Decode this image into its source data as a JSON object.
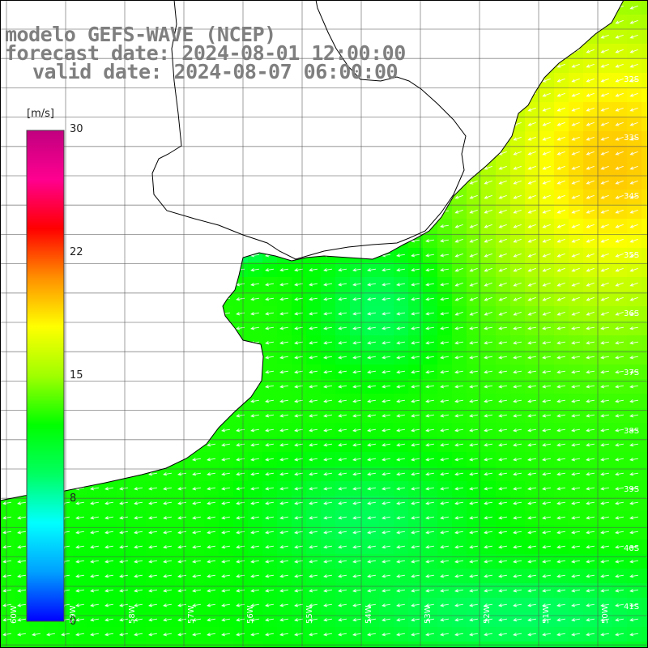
{
  "header": {
    "line1": "modelo GEFS-WAVE (NCEP)",
    "line2": "forecast date: 2024-08-01 12:00:00",
    "line3": "valid date: 2024-08-07 06:00:00"
  },
  "colorbar": {
    "unit": "[m/s]",
    "min": 0,
    "max": 30,
    "ticks": [
      "30",
      "22",
      "15",
      "8",
      "0"
    ],
    "tick_values": [
      30,
      22,
      15,
      8,
      0
    ],
    "colors": [
      "#0000ff",
      "#00a0ff",
      "#00ffff",
      "#00ff60",
      "#00ff00",
      "#a0ff00",
      "#ffff00",
      "#ff9000",
      "#ff0000",
      "#ff0090",
      "#c0007f"
    ]
  },
  "grid": {
    "lat_labels": [
      "32S",
      "33S",
      "34S",
      "35S",
      "36S",
      "37S",
      "38S",
      "39S",
      "40S",
      "41S"
    ],
    "lon_labels": [
      "60W",
      "59W",
      "58W",
      "57W",
      "56W",
      "55W",
      "54W",
      "53W",
      "52W",
      "51W",
      "50W"
    ]
  },
  "field": {
    "variable": "wind speed",
    "colors": {
      "land": "#ffffff",
      "grid_line": "#555555",
      "coast": "#000000",
      "arrow": "#ffffff"
    }
  }
}
